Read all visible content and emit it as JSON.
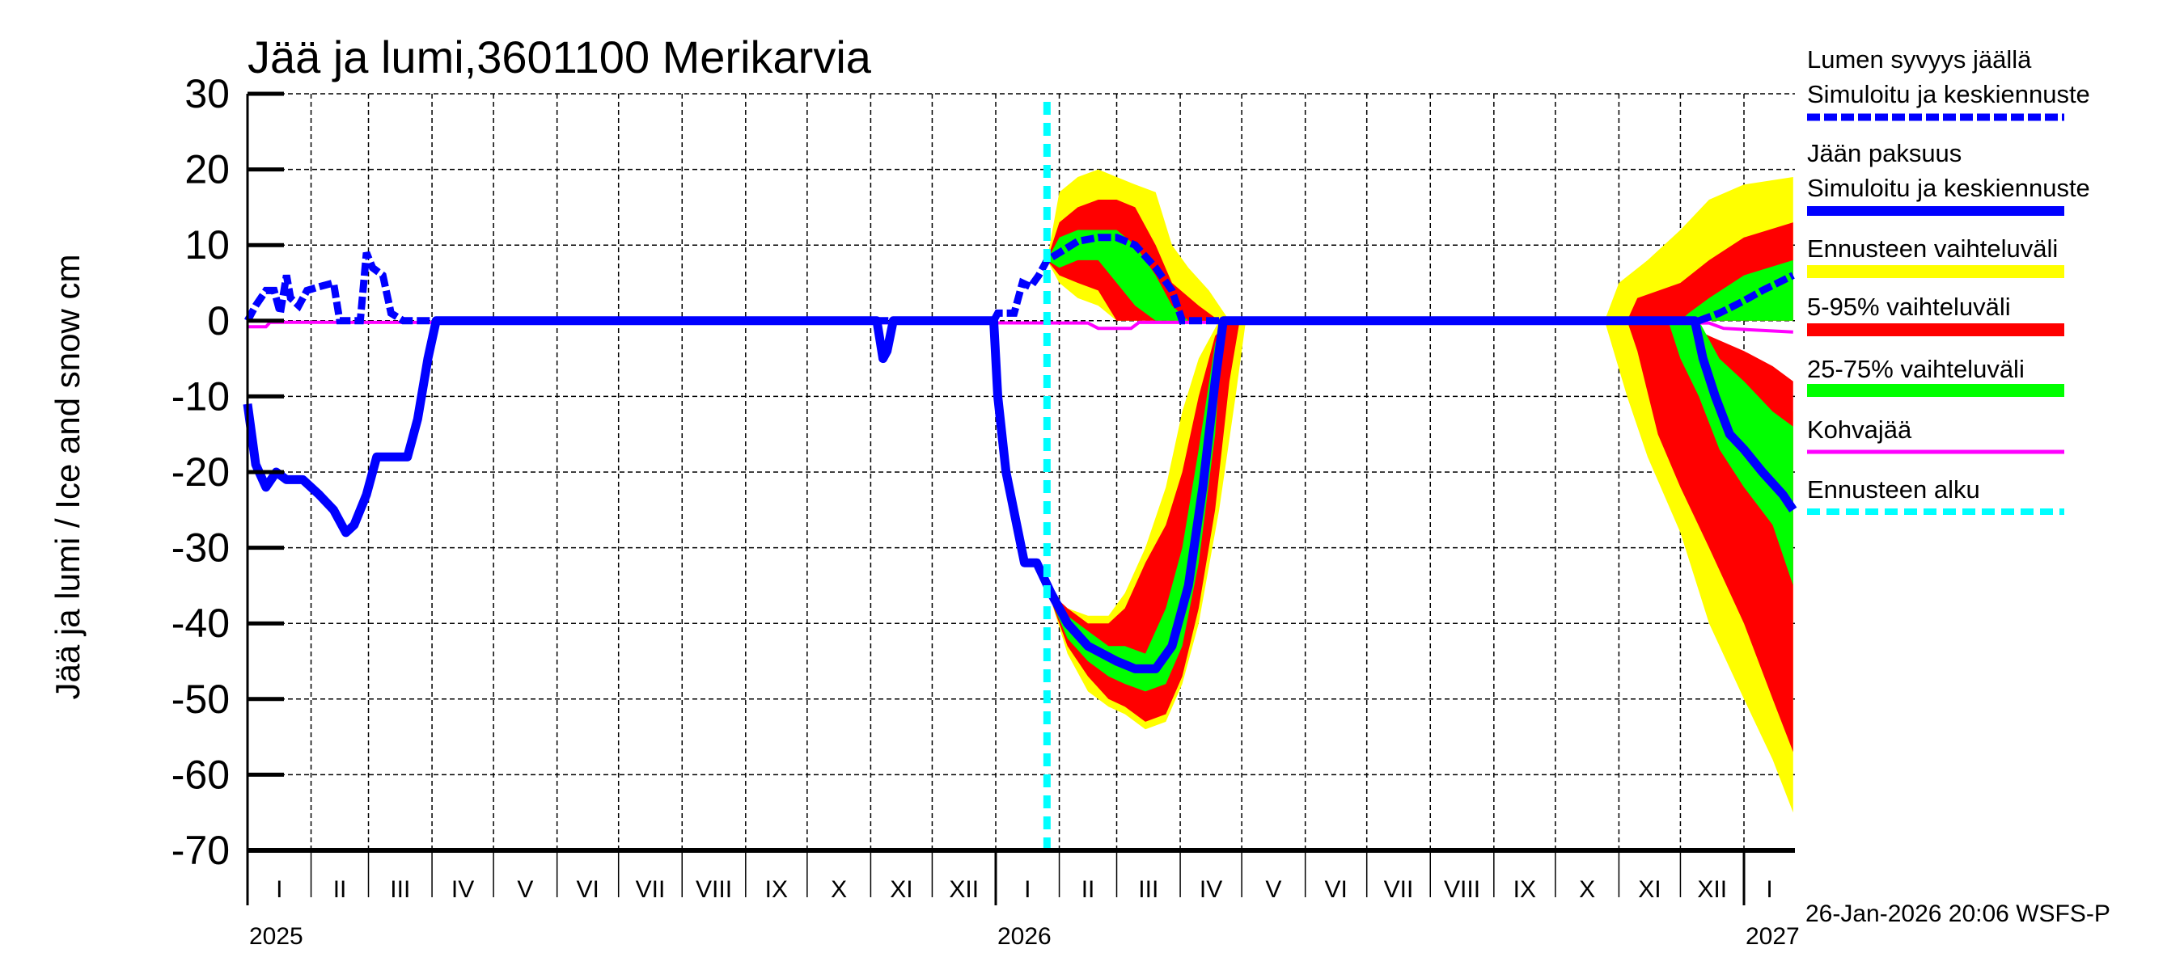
{
  "chart_data": {
    "type": "area",
    "title": "Jää ja lumi,3601100 Merikarvia",
    "ylabel": "Jää ja lumi / Ice and snow    cm",
    "ylim": [
      -70,
      30
    ],
    "yticks": [
      30,
      20,
      10,
      0,
      -10,
      -20,
      -30,
      -40,
      -50,
      -60,
      -70
    ],
    "xlim": [
      "2025-01-01",
      "2027-01-25"
    ],
    "month_labels": [
      "I",
      "II",
      "III",
      "IV",
      "V",
      "VI",
      "VII",
      "VIII",
      "IX",
      "X",
      "XI",
      "XII",
      "I",
      "II",
      "III",
      "IV",
      "V",
      "VI",
      "VII",
      "VIII",
      "IX",
      "X",
      "XI",
      "XII",
      "I"
    ],
    "year_labels": [
      "2025",
      "2026",
      "2027"
    ],
    "grid": true,
    "legend_position": "right",
    "forecast_start": "2026-01-26",
    "timestamp": "26-Jan-2026 20:06 WSFS-P",
    "colors": {
      "snow": "#0000ff",
      "ice": "#0000ff",
      "range": "#ffff00",
      "p5_95": "#ff0000",
      "p25_75": "#00ff00",
      "slush": "#ff00ff",
      "forecast_start": "#00ffff"
    },
    "legend": [
      {
        "label1": "Lumen syvyys jäällä",
        "label2": "Simuloitu ja keskiennuste",
        "style": "dashed-blue"
      },
      {
        "label1": "Jään paksuus",
        "label2": "Simuloitu ja keskiennuste",
        "style": "solid-blue"
      },
      {
        "label1": "Ennusteen vaihteluväli",
        "style": "yellow-band"
      },
      {
        "label1": "5-95% vaihteluväli",
        "style": "red-band"
      },
      {
        "label1": "25-75% vaihteluväli",
        "style": "green-band"
      },
      {
        "label1": "Kohvajää",
        "style": "magenta-line"
      },
      {
        "label1": "Ennusteen alku",
        "style": "cyan-dashed"
      }
    ],
    "series": {
      "snow": [
        [
          "2025-01-01",
          0
        ],
        [
          "2025-01-05",
          2
        ],
        [
          "2025-01-10",
          4
        ],
        [
          "2025-01-14",
          4
        ],
        [
          "2025-01-17",
          1
        ],
        [
          "2025-01-20",
          6
        ],
        [
          "2025-01-22",
          3
        ],
        [
          "2025-01-26",
          2
        ],
        [
          "2025-01-30",
          4
        ],
        [
          "2025-02-05",
          4.5
        ],
        [
          "2025-02-12",
          5
        ],
        [
          "2025-02-15",
          0
        ],
        [
          "2025-02-25",
          0
        ],
        [
          "2025-02-28",
          9
        ],
        [
          "2025-03-03",
          7
        ],
        [
          "2025-03-08",
          6
        ],
        [
          "2025-03-12",
          1
        ],
        [
          "2025-03-18",
          0
        ],
        [
          "2025-12-31",
          0
        ],
        [
          "2026-01-02",
          1
        ],
        [
          "2026-01-10",
          1
        ],
        [
          "2026-01-14",
          5
        ],
        [
          "2026-01-18",
          4.5
        ],
        [
          "2026-01-22",
          6
        ],
        [
          "2026-01-26",
          8
        ],
        [
          "2026-02-01",
          9
        ],
        [
          "2026-02-10",
          10.5
        ],
        [
          "2026-02-20",
          11
        ],
        [
          "2026-03-01",
          11
        ],
        [
          "2026-03-10",
          10
        ],
        [
          "2026-03-20",
          7
        ],
        [
          "2026-03-28",
          4
        ],
        [
          "2026-04-02",
          0
        ],
        [
          "2026-12-10",
          0
        ],
        [
          "2026-12-20",
          1
        ],
        [
          "2026-12-31",
          2.5
        ],
        [
          "2027-01-10",
          4
        ],
        [
          "2027-01-25",
          6
        ]
      ],
      "ice": [
        [
          "2025-01-01",
          -11
        ],
        [
          "2025-01-05",
          -19
        ],
        [
          "2025-01-10",
          -22
        ],
        [
          "2025-01-15",
          -20
        ],
        [
          "2025-01-20",
          -21
        ],
        [
          "2025-01-28",
          -21
        ],
        [
          "2025-02-05",
          -23
        ],
        [
          "2025-02-12",
          -25
        ],
        [
          "2025-02-18",
          -28
        ],
        [
          "2025-02-22",
          -27
        ],
        [
          "2025-02-28",
          -23
        ],
        [
          "2025-03-05",
          -18
        ],
        [
          "2025-03-12",
          -18
        ],
        [
          "2025-03-20",
          -18
        ],
        [
          "2025-03-25",
          -13
        ],
        [
          "2025-03-30",
          -5
        ],
        [
          "2025-04-03",
          0
        ],
        [
          "2025-11-04",
          0
        ],
        [
          "2025-11-07",
          -5
        ],
        [
          "2025-11-09",
          -4
        ],
        [
          "2025-11-12",
          0
        ],
        [
          "2025-12-31",
          0
        ],
        [
          "2026-01-02",
          -10
        ],
        [
          "2026-01-06",
          -20
        ],
        [
          "2026-01-12",
          -28
        ],
        [
          "2026-01-15",
          -32
        ],
        [
          "2026-01-21",
          -32
        ],
        [
          "2026-01-28",
          -36
        ],
        [
          "2026-02-05",
          -40
        ],
        [
          "2026-02-15",
          -43
        ],
        [
          "2026-03-01",
          -45
        ],
        [
          "2026-03-10",
          -46
        ],
        [
          "2026-03-20",
          -46
        ],
        [
          "2026-03-28",
          -43
        ],
        [
          "2026-04-05",
          -35
        ],
        [
          "2026-04-12",
          -22
        ],
        [
          "2026-04-18",
          -8
        ],
        [
          "2026-04-22",
          0
        ],
        [
          "2026-12-08",
          0
        ],
        [
          "2026-12-12",
          -5
        ],
        [
          "2026-12-18",
          -10
        ],
        [
          "2026-12-25",
          -15
        ],
        [
          "2027-01-01",
          -17
        ],
        [
          "2027-01-10",
          -20
        ],
        [
          "2027-01-20",
          -23
        ],
        [
          "2027-01-25",
          -25
        ]
      ],
      "slush": [
        [
          "2025-01-01",
          -0.8
        ],
        [
          "2025-01-10",
          -0.8
        ],
        [
          "2025-01-12",
          -0.2
        ],
        [
          "2026-02-15",
          -0.3
        ],
        [
          "2026-02-20",
          -1
        ],
        [
          "2026-03-08",
          -1
        ],
        [
          "2026-03-12",
          -0.2
        ],
        [
          "2026-12-15",
          -0.3
        ],
        [
          "2026-12-22",
          -1
        ],
        [
          "2027-01-25",
          -1.5
        ]
      ]
    },
    "bands": {
      "range": [
        [
          [
            "2026-01-26",
            8,
            8
          ],
          [
            "2026-02-01",
            5,
            17
          ],
          [
            "2026-02-10",
            3,
            19
          ],
          [
            "2026-02-20",
            2,
            20
          ],
          [
            "2026-03-01",
            0,
            19
          ],
          [
            "2026-03-10",
            0,
            18
          ],
          [
            "2026-03-20",
            0,
            17
          ],
          [
            "2026-03-28",
            0,
            10
          ],
          [
            "2026-04-05",
            0,
            7
          ],
          [
            "2026-04-15",
            0,
            4
          ],
          [
            "2026-04-25",
            0,
            0
          ]
        ],
        [
          [
            "2026-01-28",
            -37,
            -36
          ],
          [
            "2026-02-05",
            -44,
            -38
          ],
          [
            "2026-02-15",
            -49,
            -39
          ],
          [
            "2026-02-25",
            -51,
            -39
          ],
          [
            "2026-03-05",
            -52,
            -36
          ],
          [
            "2026-03-15",
            -54,
            -30
          ],
          [
            "2026-03-25",
            -53,
            -22
          ],
          [
            "2026-04-02",
            -48,
            -12
          ],
          [
            "2026-04-10",
            -40,
            -5
          ],
          [
            "2026-04-20",
            -25,
            0
          ],
          [
            "2026-04-28",
            -10,
            0
          ],
          [
            "2026-05-03",
            0,
            0
          ]
        ],
        [
          [
            "2026-10-25",
            0,
            0
          ],
          [
            "2026-11-01",
            0,
            5
          ],
          [
            "2026-11-15",
            0,
            8
          ],
          [
            "2026-12-01",
            0,
            12
          ],
          [
            "2026-12-15",
            0,
            16
          ],
          [
            "2027-01-01",
            0,
            18
          ],
          [
            "2027-01-25",
            0,
            19
          ]
        ],
        [
          [
            "2026-10-25",
            0,
            0
          ],
          [
            "2026-11-05",
            -10,
            0
          ],
          [
            "2026-11-15",
            -18,
            0
          ],
          [
            "2026-12-01",
            -28,
            -2
          ],
          [
            "2026-12-15",
            -40,
            -5
          ],
          [
            "2027-01-01",
            -50,
            -8
          ],
          [
            "2027-01-15",
            -58,
            -10
          ],
          [
            "2027-01-25",
            -65,
            -12
          ]
        ]
      ],
      "p5_95": [
        [
          [
            "2026-01-26",
            8,
            8
          ],
          [
            "2026-02-01",
            6,
            13
          ],
          [
            "2026-02-10",
            5,
            15
          ],
          [
            "2026-02-20",
            4,
            16
          ],
          [
            "2026-03-01",
            0,
            16
          ],
          [
            "2026-03-10",
            0,
            15
          ],
          [
            "2026-03-20",
            0,
            10
          ],
          [
            "2026-03-28",
            0,
            5
          ],
          [
            "2026-04-10",
            0,
            2
          ],
          [
            "2026-04-20",
            0,
            0
          ]
        ],
        [
          [
            "2026-01-28",
            -37,
            -36
          ],
          [
            "2026-02-05",
            -43,
            -38
          ],
          [
            "2026-02-15",
            -47,
            -40
          ],
          [
            "2026-02-25",
            -50,
            -40
          ],
          [
            "2026-03-05",
            -51,
            -38
          ],
          [
            "2026-03-15",
            -53,
            -32
          ],
          [
            "2026-03-25",
            -52,
            -27
          ],
          [
            "2026-04-02",
            -47,
            -20
          ],
          [
            "2026-04-10",
            -38,
            -10
          ],
          [
            "2026-04-18",
            -25,
            -2
          ],
          [
            "2026-04-25",
            -8,
            0
          ],
          [
            "2026-04-30",
            0,
            0
          ]
        ],
        [
          [
            "2026-11-05",
            0,
            0
          ],
          [
            "2026-11-10",
            0,
            3
          ],
          [
            "2026-12-01",
            0,
            5
          ],
          [
            "2026-12-15",
            0,
            8
          ],
          [
            "2027-01-01",
            0,
            11
          ],
          [
            "2027-01-25",
            0,
            13
          ]
        ],
        [
          [
            "2026-11-05",
            0,
            0
          ],
          [
            "2026-11-10",
            -4,
            0
          ],
          [
            "2026-11-20",
            -15,
            0
          ],
          [
            "2026-12-01",
            -22,
            0
          ],
          [
            "2026-12-15",
            -30,
            -2
          ],
          [
            "2027-01-01",
            -40,
            -4
          ],
          [
            "2027-01-15",
            -50,
            -6
          ],
          [
            "2027-01-25",
            -57,
            -8
          ]
        ]
      ],
      "p25_75": [
        [
          [
            "2026-01-26",
            8,
            8
          ],
          [
            "2026-02-01",
            7,
            11
          ],
          [
            "2026-02-10",
            8,
            12
          ],
          [
            "2026-02-20",
            8,
            12
          ],
          [
            "2026-03-01",
            5,
            12
          ],
          [
            "2026-03-10",
            2,
            10
          ],
          [
            "2026-03-20",
            0,
            6
          ],
          [
            "2026-03-28",
            0,
            2
          ],
          [
            "2026-04-05",
            0,
            0
          ]
        ],
        [
          [
            "2026-01-28",
            -37,
            -36
          ],
          [
            "2026-02-05",
            -42,
            -39
          ],
          [
            "2026-02-15",
            -45,
            -41
          ],
          [
            "2026-02-25",
            -47,
            -43
          ],
          [
            "2026-03-05",
            -48,
            -43
          ],
          [
            "2026-03-15",
            -49,
            -44
          ],
          [
            "2026-03-25",
            -48,
            -38
          ],
          [
            "2026-04-02",
            -43,
            -30
          ],
          [
            "2026-04-10",
            -32,
            -17
          ],
          [
            "2026-04-18",
            -15,
            -3
          ],
          [
            "2026-04-22",
            0,
            0
          ]
        ],
        [
          [
            "2026-12-01",
            0,
            0
          ],
          [
            "2026-12-05",
            0,
            1
          ],
          [
            "2026-12-15",
            0,
            3
          ],
          [
            "2027-01-01",
            0,
            6
          ],
          [
            "2027-01-25",
            0,
            8
          ]
        ],
        [
          [
            "2026-11-25",
            0,
            0
          ],
          [
            "2026-12-01",
            -5,
            0
          ],
          [
            "2026-12-10",
            -10,
            0
          ],
          [
            "2026-12-20",
            -17,
            -5
          ],
          [
            "2027-01-01",
            -22,
            -8
          ],
          [
            "2027-01-15",
            -27,
            -12
          ],
          [
            "2027-01-25",
            -35,
            -14
          ]
        ]
      ]
    }
  }
}
